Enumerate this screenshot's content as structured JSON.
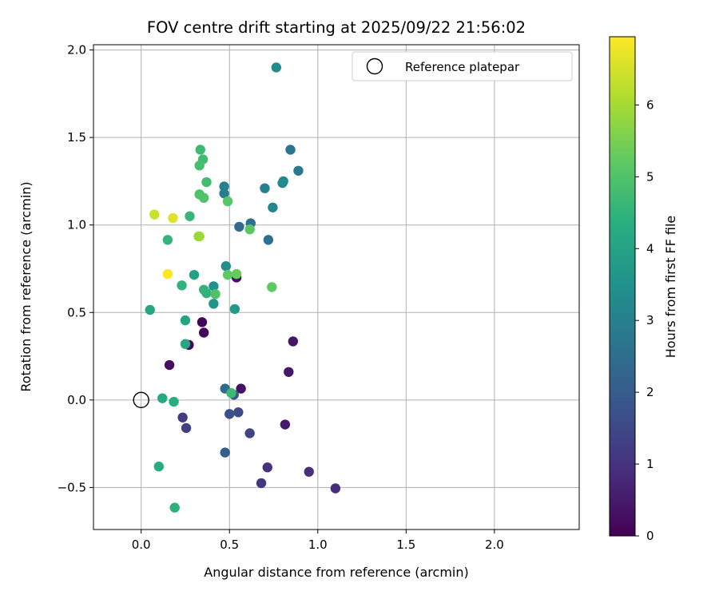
{
  "chart_data": {
    "type": "scatter",
    "title": "FOV centre drift starting at 2025/09/22 21:56:02",
    "xlabel": "Angular distance from reference (arcmin)",
    "ylabel": "Rotation from reference (arcmin)",
    "xlim": [
      -0.27,
      2.48
    ],
    "ylim": [
      -0.74,
      2.03
    ],
    "x_ticks": [
      0.0,
      0.5,
      1.0,
      1.5,
      2.0
    ],
    "x_tick_labels": [
      "0.0",
      "0.5",
      "1.0",
      "1.5",
      "2.0"
    ],
    "y_ticks": [
      -0.5,
      0.0,
      0.5,
      1.0,
      1.5,
      2.0
    ],
    "y_tick_labels": [
      "−0.5",
      "0.0",
      "0.5",
      "1.0",
      "1.5",
      "2.0"
    ],
    "grid": true,
    "legend": {
      "position": "top-right",
      "entries": [
        "Reference platepar"
      ]
    },
    "reference_point": {
      "x": 0.0,
      "y": 0.0,
      "label": "Reference platepar"
    },
    "colorbar": {
      "label": "Hours from first FF file",
      "colormap": "viridis",
      "range": [
        0,
        6.95
      ],
      "ticks": [
        0,
        1,
        2,
        3,
        4,
        5,
        6
      ],
      "tick_labels": [
        "0",
        "1",
        "2",
        "3",
        "4",
        "5",
        "6"
      ]
    },
    "points": [
      {
        "x": 0.345,
        "y": 0.445,
        "hours": 0.1
      },
      {
        "x": 0.355,
        "y": 0.385,
        "hours": 0.15
      },
      {
        "x": 0.27,
        "y": 0.315,
        "hours": 0.2
      },
      {
        "x": 0.16,
        "y": 0.2,
        "hours": 0.25
      },
      {
        "x": 0.54,
        "y": 0.7,
        "hours": 0.3
      },
      {
        "x": 0.565,
        "y": 0.065,
        "hours": 0.35
      },
      {
        "x": 0.86,
        "y": 0.335,
        "hours": 0.4
      },
      {
        "x": 0.835,
        "y": 0.16,
        "hours": 0.45
      },
      {
        "x": 0.815,
        "y": -0.14,
        "hours": 0.5
      },
      {
        "x": 1.1,
        "y": -0.505,
        "hours": 0.9
      },
      {
        "x": 0.95,
        "y": -0.41,
        "hours": 0.95
      },
      {
        "x": 0.715,
        "y": -0.385,
        "hours": 1.0
      },
      {
        "x": 0.68,
        "y": -0.475,
        "hours": 1.1
      },
      {
        "x": 0.235,
        "y": -0.1,
        "hours": 1.2
      },
      {
        "x": 0.255,
        "y": -0.16,
        "hours": 1.3
      },
      {
        "x": 0.615,
        "y": -0.19,
        "hours": 1.4
      },
      {
        "x": 0.55,
        "y": -0.07,
        "hours": 1.6
      },
      {
        "x": 0.5,
        "y": -0.08,
        "hours": 1.7
      },
      {
        "x": 0.525,
        "y": 0.03,
        "hours": 1.9
      },
      {
        "x": 0.475,
        "y": -0.3,
        "hours": 2.1
      },
      {
        "x": 0.475,
        "y": 0.065,
        "hours": 2.4
      },
      {
        "x": 0.555,
        "y": 0.99,
        "hours": 2.4
      },
      {
        "x": 0.62,
        "y": 1.01,
        "hours": 2.5
      },
      {
        "x": 0.72,
        "y": 0.915,
        "hours": 2.6
      },
      {
        "x": 0.845,
        "y": 1.43,
        "hours": 2.7
      },
      {
        "x": 0.89,
        "y": 1.31,
        "hours": 2.8
      },
      {
        "x": 0.47,
        "y": 1.18,
        "hours": 2.9
      },
      {
        "x": 0.47,
        "y": 1.22,
        "hours": 3.0
      },
      {
        "x": 0.7,
        "y": 1.21,
        "hours": 3.0
      },
      {
        "x": 0.745,
        "y": 1.1,
        "hours": 3.1
      },
      {
        "x": 0.8,
        "y": 1.24,
        "hours": 3.2
      },
      {
        "x": 0.805,
        "y": 1.25,
        "hours": 3.3
      },
      {
        "x": 0.765,
        "y": 1.9,
        "hours": 3.3
      },
      {
        "x": 0.48,
        "y": 0.765,
        "hours": 3.4
      },
      {
        "x": 0.41,
        "y": 0.65,
        "hours": 3.5
      },
      {
        "x": 0.41,
        "y": 0.55,
        "hours": 3.6
      },
      {
        "x": 0.53,
        "y": 0.52,
        "hours": 3.7
      },
      {
        "x": 0.3,
        "y": 0.715,
        "hours": 3.9
      },
      {
        "x": 0.25,
        "y": 0.455,
        "hours": 4.0
      },
      {
        "x": 0.25,
        "y": 0.32,
        "hours": 4.1
      },
      {
        "x": 0.05,
        "y": 0.515,
        "hours": 4.1
      },
      {
        "x": 0.12,
        "y": 0.01,
        "hours": 4.2
      },
      {
        "x": 0.185,
        "y": -0.01,
        "hours": 4.3
      },
      {
        "x": 0.1,
        "y": -0.38,
        "hours": 4.3
      },
      {
        "x": 0.19,
        "y": -0.615,
        "hours": 4.4
      },
      {
        "x": 0.37,
        "y": 0.61,
        "hours": 4.45
      },
      {
        "x": 0.355,
        "y": 0.63,
        "hours": 4.5
      },
      {
        "x": 0.15,
        "y": 0.915,
        "hours": 4.55
      },
      {
        "x": 0.275,
        "y": 1.05,
        "hours": 4.6
      },
      {
        "x": 0.335,
        "y": 1.43,
        "hours": 4.7
      },
      {
        "x": 0.35,
        "y": 1.375,
        "hours": 4.75
      },
      {
        "x": 0.37,
        "y": 1.245,
        "hours": 4.8
      },
      {
        "x": 0.33,
        "y": 1.34,
        "hours": 4.85
      },
      {
        "x": 0.33,
        "y": 1.175,
        "hours": 4.95
      },
      {
        "x": 0.355,
        "y": 1.155,
        "hours": 5.0
      },
      {
        "x": 0.23,
        "y": 0.655,
        "hours": 4.5
      },
      {
        "x": 0.51,
        "y": 0.04,
        "hours": 4.7
      },
      {
        "x": 0.42,
        "y": 0.605,
        "hours": 5.0
      },
      {
        "x": 0.49,
        "y": 1.135,
        "hours": 5.1
      },
      {
        "x": 0.615,
        "y": 0.975,
        "hours": 5.15
      },
      {
        "x": 0.74,
        "y": 0.645,
        "hours": 5.2
      },
      {
        "x": 0.49,
        "y": 0.715,
        "hours": 5.2
      },
      {
        "x": 0.54,
        "y": 0.72,
        "hours": 5.3
      },
      {
        "x": 0.325,
        "y": 0.935,
        "hours": 5.8
      },
      {
        "x": 0.33,
        "y": 0.935,
        "hours": 5.9
      },
      {
        "x": 0.075,
        "y": 1.06,
        "hours": 6.4
      },
      {
        "x": 0.18,
        "y": 1.04,
        "hours": 6.6
      },
      {
        "x": 0.15,
        "y": 0.72,
        "hours": 6.95
      }
    ]
  }
}
